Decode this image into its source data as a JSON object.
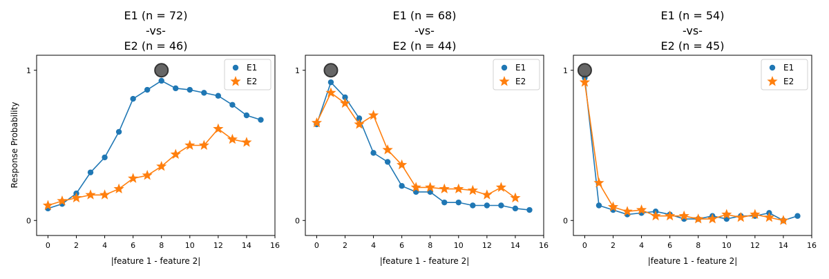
{
  "ylabel": "Response Probability",
  "chart_data": [
    {
      "type": "line",
      "title_lines": [
        "E1 (n = 72)",
        "-vs-",
        "E2 (n = 46)"
      ],
      "xlabel": "|feature 1 - feature 2|",
      "xlim": [
        -0.8,
        16
      ],
      "ylim": [
        -0.1,
        1.1
      ],
      "xticks": [
        "0",
        "2",
        "4",
        "6",
        "8",
        "10",
        "12",
        "14",
        "16"
      ],
      "yticks": [
        "0",
        "1"
      ],
      "legend": "top-right",
      "marker_x": 8,
      "marker_y": 1,
      "series": [
        {
          "name": "E1",
          "marker": "circle",
          "color": "#1f77b4",
          "x": [
            0,
            1,
            2,
            3,
            4,
            5,
            6,
            7,
            8,
            9,
            10,
            11,
            12,
            13,
            14,
            15
          ],
          "y": [
            0.08,
            0.11,
            0.18,
            0.32,
            0.42,
            0.59,
            0.81,
            0.87,
            0.93,
            0.88,
            0.87,
            0.85,
            0.83,
            0.77,
            0.7,
            0.67
          ]
        },
        {
          "name": "E2",
          "marker": "star",
          "color": "#ff7f0e",
          "x": [
            0,
            1,
            2,
            3,
            4,
            5,
            6,
            7,
            8,
            9,
            10,
            11,
            12,
            13,
            14
          ],
          "y": [
            0.1,
            0.13,
            0.15,
            0.17,
            0.17,
            0.21,
            0.28,
            0.3,
            0.36,
            0.44,
            0.5,
            0.5,
            0.61,
            0.54,
            0.52
          ]
        }
      ]
    },
    {
      "type": "line",
      "title_lines": [
        "E1 (n = 68)",
        "-vs-",
        "E2 (n = 44)"
      ],
      "xlabel": "|feature 1 - feature 2|",
      "xlim": [
        -0.8,
        16
      ],
      "ylim": [
        -0.1,
        1.1
      ],
      "xticks": [
        "0",
        "2",
        "4",
        "6",
        "8",
        "10",
        "12",
        "14",
        "16"
      ],
      "yticks": [
        "0",
        "1"
      ],
      "legend": "top-right",
      "marker_x": 1,
      "marker_y": 1,
      "series": [
        {
          "name": "E1",
          "marker": "circle",
          "color": "#1f77b4",
          "x": [
            0,
            1,
            2,
            3,
            4,
            5,
            6,
            7,
            8,
            9,
            10,
            11,
            12,
            13,
            14,
            15
          ],
          "y": [
            0.64,
            0.92,
            0.82,
            0.68,
            0.45,
            0.39,
            0.23,
            0.19,
            0.19,
            0.12,
            0.12,
            0.1,
            0.1,
            0.1,
            0.08,
            0.07
          ]
        },
        {
          "name": "E2",
          "marker": "star",
          "color": "#ff7f0e",
          "x": [
            0,
            1,
            2,
            3,
            4,
            5,
            6,
            7,
            8,
            9,
            10,
            11,
            12,
            13,
            14
          ],
          "y": [
            0.65,
            0.85,
            0.78,
            0.64,
            0.7,
            0.47,
            0.37,
            0.22,
            0.22,
            0.21,
            0.21,
            0.2,
            0.17,
            0.22,
            0.15
          ]
        }
      ]
    },
    {
      "type": "line",
      "title_lines": [
        "E1 (n = 54)",
        "-vs-",
        "E2 (n = 45)"
      ],
      "xlabel": "|feature 1 - feature 2|",
      "xlim": [
        -0.8,
        16
      ],
      "ylim": [
        -0.1,
        1.1
      ],
      "xticks": [
        "0",
        "2",
        "4",
        "6",
        "8",
        "10",
        "12",
        "14",
        "16"
      ],
      "yticks": [
        "0",
        "1"
      ],
      "legend": "top-right",
      "marker_x": 0,
      "marker_y": 1,
      "series": [
        {
          "name": "E1",
          "marker": "circle",
          "color": "#1f77b4",
          "x": [
            0,
            1,
            2,
            3,
            4,
            5,
            6,
            7,
            8,
            9,
            10,
            11,
            12,
            13,
            14,
            15
          ],
          "y": [
            0.95,
            0.1,
            0.07,
            0.04,
            0.05,
            0.06,
            0.04,
            0.01,
            0.01,
            0.03,
            0.01,
            0.03,
            0.03,
            0.05,
            0.0,
            0.03
          ]
        },
        {
          "name": "E2",
          "marker": "star",
          "color": "#ff7f0e",
          "x": [
            0,
            1,
            2,
            3,
            4,
            5,
            6,
            7,
            8,
            9,
            10,
            11,
            12,
            13,
            14
          ],
          "y": [
            0.92,
            0.25,
            0.09,
            0.06,
            0.07,
            0.03,
            0.03,
            0.03,
            0.01,
            0.01,
            0.04,
            0.02,
            0.04,
            0.02,
            0.0
          ]
        }
      ]
    }
  ]
}
